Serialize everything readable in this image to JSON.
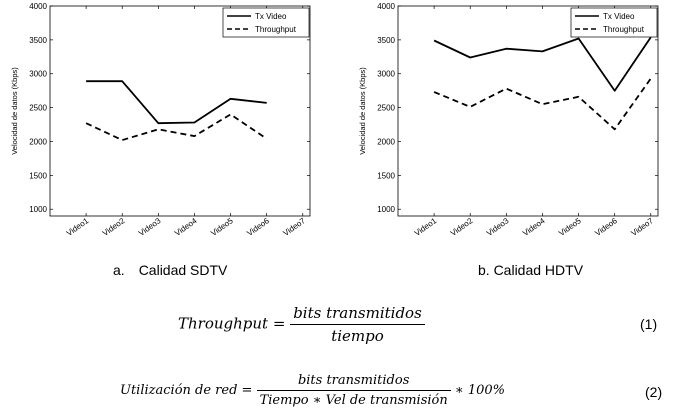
{
  "chart_data": [
    {
      "type": "line",
      "categories": [
        "Video1",
        "Video2",
        "Video3",
        "Video4",
        "Video5",
        "Video6",
        "Video7"
      ],
      "ylabel": "Velocidad de datos (Kbps)",
      "ylim": [
        900,
        4000
      ],
      "yticks": [
        1000,
        1500,
        2000,
        2500,
        3000,
        3500,
        4000
      ],
      "legend_position": "top-right",
      "series": [
        {
          "name": "Tx Video",
          "style": "solid",
          "values": [
            2890,
            2890,
            2270,
            2280,
            2630,
            2570,
            null
          ]
        },
        {
          "name": "Throughput",
          "style": "dashed",
          "values": [
            2270,
            2020,
            2180,
            2080,
            2400,
            2040,
            null
          ]
        }
      ]
    },
    {
      "type": "line",
      "categories": [
        "Video1",
        "Video2",
        "Video3",
        "Video4",
        "Video5",
        "Video6",
        "Video7"
      ],
      "ylabel": "Velocidad de datos (Kbps)",
      "ylim": [
        900,
        4000
      ],
      "yticks": [
        1000,
        1500,
        2000,
        2500,
        3000,
        3500,
        4000
      ],
      "legend_position": "top-right",
      "series": [
        {
          "name": "Tx Video",
          "style": "solid",
          "values": [
            3490,
            3240,
            3370,
            3330,
            3520,
            2750,
            3540
          ]
        },
        {
          "name": "Throughput",
          "style": "dashed",
          "values": [
            2730,
            2510,
            2780,
            2550,
            2660,
            2180,
            2930
          ]
        }
      ]
    }
  ],
  "captions": {
    "a_letter": "a.",
    "a_text": "Calidad SDTV",
    "b_text": "b. Calidad HDTV"
  },
  "equations": {
    "eq1": {
      "lhs": "Throughput =",
      "numerator": "bits transmitidos",
      "denominator": "tiempo",
      "number": "(1)"
    },
    "eq2": {
      "lhs": "Utilización de red =",
      "numerator": "bits transmitidos",
      "denominator": "Tiempo ∗ Vel de transmisión",
      "suffix": "∗ 100%",
      "number": "(2)"
    }
  },
  "colors": {
    "line": "#000000",
    "axis": "#000000"
  }
}
